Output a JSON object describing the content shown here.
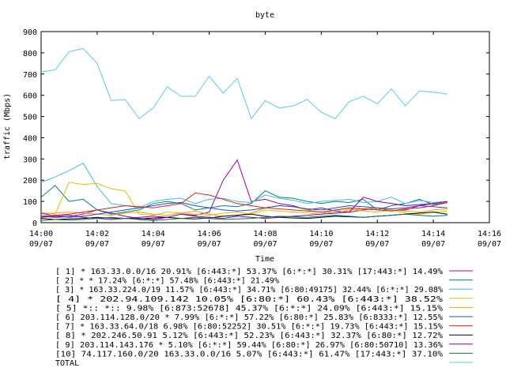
{
  "chart_data": {
    "type": "line",
    "title": "byte",
    "xlabel": "Time",
    "ylabel": "traffic (Mbps)",
    "ylim": [
      0,
      900
    ],
    "yticks": [
      0,
      100,
      200,
      300,
      400,
      500,
      600,
      700,
      800,
      900
    ],
    "xlim": [
      "14:00",
      "14:16"
    ],
    "xticks": [
      {
        "time": "14:00",
        "date": "09/07",
        "t": 0
      },
      {
        "time": "14:02",
        "date": "09/07",
        "t": 2
      },
      {
        "time": "14:04",
        "date": "09/07",
        "t": 4
      },
      {
        "time": "14:06",
        "date": "09/07",
        "t": 6
      },
      {
        "time": "14:08",
        "date": "09/07",
        "t": 8
      },
      {
        "time": "14:10",
        "date": "09/07",
        "t": 10
      },
      {
        "time": "14:12",
        "date": "09/07",
        "t": 12
      },
      {
        "time": "14:14",
        "date": "09/07",
        "t": 14
      },
      {
        "time": "14:16",
        "date": "09/07",
        "t": 16
      }
    ],
    "x": [
      0,
      0.5,
      1,
      1.5,
      2,
      2.5,
      3,
      3.5,
      4,
      4.5,
      5,
      5.5,
      6,
      6.5,
      7,
      7.5,
      8,
      8.5,
      9,
      9.5,
      10,
      10.5,
      11,
      11.5,
      12,
      12.5,
      13,
      13.5,
      14,
      14.5
    ],
    "series": [
      {
        "name": "[ 1] * 163.33.0.0/16 20.91%  [6:443:*] 53.37% [6:*:*] 30.31% [17:443:*] 14.49%",
        "color": "#a000a0",
        "values": [
          30,
          25,
          28,
          40,
          60,
          45,
          30,
          20,
          15,
          25,
          40,
          35,
          50,
          200,
          295,
          100,
          110,
          90,
          80,
          60,
          70,
          55,
          50,
          60,
          70,
          55,
          60,
          80,
          90,
          100
        ]
      },
      {
        "name": "[ 2] * * 17.24%  [6:*:*] 57.48% [6:443:*] 21.49%",
        "color": "#008080",
        "values": [
          120,
          175,
          100,
          110,
          60,
          40,
          50,
          60,
          90,
          100,
          90,
          60,
          70,
          80,
          75,
          90,
          150,
          120,
          115,
          100,
          90,
          100,
          95,
          110,
          60,
          80,
          90,
          110,
          85,
          95
        ]
      },
      {
        "name": "[ 3] * 163.33.224.0/19 11.57%  [6:443:*] 34.71% [6:80:49175] 32.44% [6:*:*] 29.08%",
        "color": "#40c0d8",
        "values": [
          190,
          215,
          245,
          280,
          170,
          90,
          80,
          70,
          100,
          110,
          115,
          90,
          110,
          115,
          100,
          95,
          130,
          115,
          105,
          90,
          100,
          105,
          110,
          95,
          100,
          120,
          90,
          105,
          95,
          100
        ]
      },
      {
        "name": "[ 4] * 202.94.109.142 10.05%  [6:80:*] 60.43% [6:443:*] 38.52%",
        "color": "#e0c000",
        "values": [
          50,
          40,
          190,
          180,
          185,
          160,
          150,
          40,
          35,
          50,
          45,
          40,
          35,
          45,
          50,
          40,
          60,
          55,
          50,
          45,
          40,
          60,
          65,
          55,
          50,
          60,
          45,
          40,
          50,
          55
        ]
      },
      {
        "name": "[ 5] *:: *:: 9.98%  [6:873:52678] 45.37% [6:*:*] 24.09% [6:443:*] 15.15%",
        "color": "#f0a000",
        "values": [
          40,
          45,
          50,
          45,
          40,
          35,
          45,
          50,
          40,
          35,
          45,
          55,
          40,
          30,
          35,
          45,
          70,
          80,
          75,
          60,
          50,
          45,
          60,
          65,
          70,
          60,
          55,
          50,
          60,
          65
        ]
      },
      {
        "name": "[ 6] 203.114.128.0/20 * 7.99%  [6:*:*] 57.22% [6:80:*] 25.83% [6:8333:*] 12.55%",
        "color": "#2050c0",
        "values": [
          45,
          30,
          25,
          30,
          40,
          50,
          60,
          70,
          80,
          90,
          95,
          80,
          70,
          60,
          55,
          60,
          70,
          80,
          75,
          65,
          60,
          70,
          80,
          75,
          70,
          65,
          70,
          80,
          75,
          70
        ]
      },
      {
        "name": "[ 7] * 163.33.64.0/18 6.98%  [6:80:52252] 30.51% [6:*:*] 19.73% [6:443:*] 15.15%",
        "color": "#e02020",
        "values": [
          30,
          35,
          40,
          50,
          60,
          70,
          80,
          75,
          70,
          80,
          90,
          140,
          130,
          110,
          90,
          80,
          70,
          65,
          60,
          55,
          50,
          60,
          70,
          65,
          60,
          55,
          65,
          70,
          80,
          95
        ]
      },
      {
        "name": "[ 8] * 202.246.50.91 5.12%  [6:443:*] 52.23% [6:443:*] 32.37% [6:80:*] 12.72%",
        "color": "#000000",
        "values": [
          20,
          15,
          18,
          20,
          25,
          22,
          20,
          18,
          22,
          25,
          20,
          18,
          22,
          30,
          35,
          40,
          30,
          25,
          22,
          20,
          25,
          30,
          28,
          25,
          30,
          35,
          40,
          45,
          50,
          40
        ]
      },
      {
        "name": "[ 9] 203.114.143.176 * 5.10%  [6:*:*] 59.44% [6:80:*] 26.97% [6:80:50710] 13.36%",
        "color": "#8000c0",
        "values": [
          25,
          30,
          35,
          25,
          20,
          15,
          20,
          25,
          30,
          25,
          40,
          30,
          25,
          20,
          30,
          25,
          20,
          25,
          30,
          35,
          40,
          45,
          50,
          120,
          100,
          90,
          80,
          85,
          90,
          100
        ]
      },
      {
        "name": "[10] 74.117.160.0/20 163.33.0.0/16 5.07%  [6:443:*] 61.47% [17:443:*] 37.10%",
        "color": "#008040",
        "values": [
          10,
          15,
          12,
          15,
          20,
          25,
          20,
          15,
          10,
          15,
          20,
          25,
          20,
          15,
          18,
          20,
          25,
          30,
          28,
          25,
          30,
          35,
          30,
          25,
          30,
          35,
          40,
          35,
          30,
          35
        ]
      },
      {
        "name": "TOTAL",
        "color": "#60c8e8",
        "values": [
          710,
          720,
          805,
          820,
          750,
          575,
          580,
          490,
          540,
          640,
          595,
          595,
          690,
          610,
          680,
          490,
          575,
          540,
          550,
          580,
          520,
          490,
          570,
          595,
          560,
          630,
          550,
          620,
          615,
          605
        ]
      }
    ]
  }
}
